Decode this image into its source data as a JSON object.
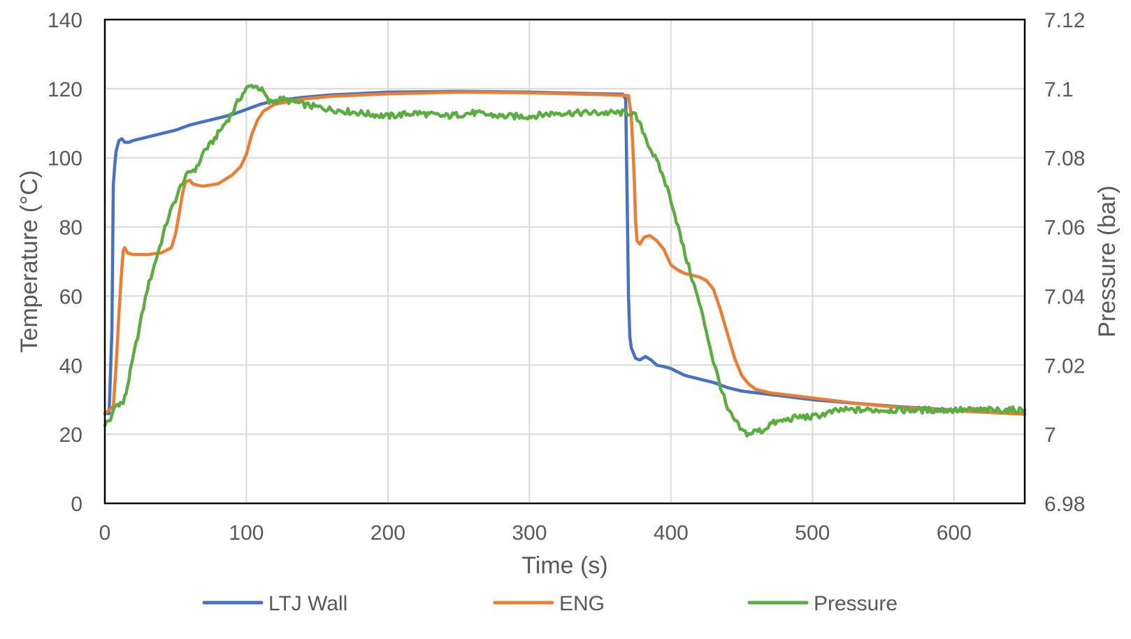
{
  "chart_data": {
    "type": "line",
    "title": "",
    "xlabel": "Time (s)",
    "ylabel": "Temperature (°C)",
    "y2label": "Pressure (bar)",
    "xlim": [
      0,
      650
    ],
    "ylim": [
      0,
      140
    ],
    "y2lim": [
      6.98,
      7.12
    ],
    "xticks": [
      0,
      100,
      200,
      300,
      400,
      500,
      600
    ],
    "yticks": [
      0,
      20,
      40,
      60,
      80,
      100,
      120,
      140
    ],
    "y2ticks": [
      "6.98",
      "7",
      "7.02",
      "7.04",
      "7.06",
      "7.08",
      "7.1",
      "7.12"
    ],
    "grid": true,
    "legend_position": "bottom",
    "colors": {
      "ltj_wall": "#4472C4",
      "eng": "#ED7D31",
      "pressure": "#5AAE3F"
    },
    "series": [
      {
        "name": "LTJ Wall",
        "axis": "left",
        "color": "#4472C4",
        "points": [
          [
            0,
            26
          ],
          [
            3,
            26
          ],
          [
            5,
            50
          ],
          [
            6,
            92
          ],
          [
            7,
            98
          ],
          [
            8,
            102
          ],
          [
            10,
            105
          ],
          [
            12,
            105.5
          ],
          [
            14,
            104.5
          ],
          [
            17,
            104.5
          ],
          [
            20,
            105
          ],
          [
            30,
            106
          ],
          [
            40,
            107
          ],
          [
            50,
            108
          ],
          [
            60,
            109.5
          ],
          [
            70,
            110.5
          ],
          [
            80,
            111.5
          ],
          [
            90,
            112.5
          ],
          [
            100,
            114
          ],
          [
            110,
            115.5
          ],
          [
            120,
            116.5
          ],
          [
            140,
            117.5
          ],
          [
            160,
            118.2
          ],
          [
            200,
            119
          ],
          [
            250,
            119.2
          ],
          [
            300,
            119
          ],
          [
            340,
            118.6
          ],
          [
            366,
            118.4
          ],
          [
            368,
            117
          ],
          [
            369,
            90
          ],
          [
            370,
            60
          ],
          [
            371,
            48
          ],
          [
            372,
            45
          ],
          [
            375,
            42
          ],
          [
            378,
            41.5
          ],
          [
            382,
            42.5
          ],
          [
            386,
            41.5
          ],
          [
            390,
            40
          ],
          [
            396,
            39.5
          ],
          [
            400,
            39
          ],
          [
            405,
            38
          ],
          [
            410,
            37
          ],
          [
            420,
            36
          ],
          [
            430,
            35
          ],
          [
            440,
            33.5
          ],
          [
            450,
            32.5
          ],
          [
            470,
            31.5
          ],
          [
            500,
            30
          ],
          [
            530,
            29
          ],
          [
            560,
            28
          ],
          [
            600,
            27
          ],
          [
            630,
            26.3
          ],
          [
            650,
            26
          ]
        ]
      },
      {
        "name": "ENG",
        "axis": "left",
        "color": "#ED7D31",
        "points": [
          [
            0,
            26
          ],
          [
            6,
            28
          ],
          [
            8,
            40
          ],
          [
            10,
            55
          ],
          [
            12,
            68
          ],
          [
            13,
            73
          ],
          [
            14,
            74
          ],
          [
            16,
            72.5
          ],
          [
            20,
            72
          ],
          [
            30,
            72
          ],
          [
            40,
            72.5
          ],
          [
            47,
            74
          ],
          [
            50,
            78
          ],
          [
            53,
            85
          ],
          [
            55,
            90
          ],
          [
            57,
            93
          ],
          [
            60,
            93.5
          ],
          [
            62,
            92.5
          ],
          [
            66,
            92
          ],
          [
            70,
            91.8
          ],
          [
            80,
            92.5
          ],
          [
            90,
            95
          ],
          [
            96,
            97.5
          ],
          [
            100,
            101
          ],
          [
            104,
            107
          ],
          [
            108,
            111
          ],
          [
            112,
            113.5
          ],
          [
            120,
            115.5
          ],
          [
            140,
            117
          ],
          [
            160,
            117.8
          ],
          [
            200,
            118.5
          ],
          [
            250,
            119
          ],
          [
            300,
            118.8
          ],
          [
            350,
            118.3
          ],
          [
            370,
            118
          ],
          [
            372,
            112
          ],
          [
            374,
            95
          ],
          [
            375,
            82
          ],
          [
            376,
            76
          ],
          [
            378,
            75
          ],
          [
            381,
            77
          ],
          [
            385,
            77.5
          ],
          [
            390,
            76
          ],
          [
            395,
            73.5
          ],
          [
            400,
            69
          ],
          [
            405,
            67.5
          ],
          [
            410,
            66.5
          ],
          [
            420,
            65.5
          ],
          [
            425,
            64.5
          ],
          [
            430,
            62
          ],
          [
            435,
            56
          ],
          [
            440,
            49
          ],
          [
            445,
            42
          ],
          [
            450,
            37
          ],
          [
            455,
            34.5
          ],
          [
            460,
            33
          ],
          [
            470,
            32
          ],
          [
            500,
            30.5
          ],
          [
            530,
            29
          ],
          [
            560,
            27.8
          ],
          [
            600,
            26.8
          ],
          [
            650,
            25.8
          ]
        ]
      },
      {
        "name": "Pressure",
        "axis": "right",
        "color": "#5AAE3F",
        "points": [
          [
            0,
            7.003
          ],
          [
            3,
            7.004
          ],
          [
            5,
            7.005
          ],
          [
            7,
            7.008
          ],
          [
            10,
            7.009
          ],
          [
            13,
            7.009
          ],
          [
            15,
            7.012
          ],
          [
            18,
            7.018
          ],
          [
            22,
            7.026
          ],
          [
            26,
            7.034
          ],
          [
            30,
            7.042
          ],
          [
            35,
            7.049
          ],
          [
            40,
            7.056
          ],
          [
            45,
            7.063
          ],
          [
            50,
            7.068
          ],
          [
            55,
            7.073
          ],
          [
            60,
            7.076
          ],
          [
            65,
            7.077
          ],
          [
            70,
            7.082
          ],
          [
            75,
            7.084
          ],
          [
            80,
            7.087
          ],
          [
            85,
            7.09
          ],
          [
            90,
            7.093
          ],
          [
            95,
            7.097
          ],
          [
            100,
            7.1
          ],
          [
            105,
            7.101
          ],
          [
            110,
            7.1
          ],
          [
            112,
            7.099
          ],
          [
            116,
            7.096
          ],
          [
            125,
            7.097
          ],
          [
            135,
            7.096
          ],
          [
            145,
            7.095
          ],
          [
            160,
            7.094
          ],
          [
            180,
            7.093
          ],
          [
            200,
            7.092
          ],
          [
            220,
            7.093
          ],
          [
            240,
            7.092
          ],
          [
            260,
            7.093
          ],
          [
            280,
            7.092
          ],
          [
            300,
            7.092
          ],
          [
            320,
            7.093
          ],
          [
            340,
            7.093
          ],
          [
            360,
            7.093
          ],
          [
            368,
            7.093
          ],
          [
            372,
            7.093
          ],
          [
            375,
            7.092
          ],
          [
            380,
            7.088
          ],
          [
            385,
            7.083
          ],
          [
            390,
            7.079
          ],
          [
            395,
            7.074
          ],
          [
            400,
            7.068
          ],
          [
            405,
            7.06
          ],
          [
            410,
            7.052
          ],
          [
            415,
            7.045
          ],
          [
            420,
            7.038
          ],
          [
            425,
            7.03
          ],
          [
            430,
            7.021
          ],
          [
            435,
            7.014
          ],
          [
            440,
            7.007
          ],
          [
            445,
            7.004
          ],
          [
            450,
            7.001
          ],
          [
            455,
            7.0
          ],
          [
            460,
            7.001
          ],
          [
            465,
            7.001
          ],
          [
            470,
            7.003
          ],
          [
            480,
            7.004
          ],
          [
            490,
            7.005
          ],
          [
            500,
            7.005
          ],
          [
            510,
            7.006
          ],
          [
            520,
            7.007
          ],
          [
            540,
            7.007
          ],
          [
            560,
            7.007
          ],
          [
            580,
            7.007
          ],
          [
            600,
            7.007
          ],
          [
            620,
            7.007
          ],
          [
            650,
            7.007
          ]
        ]
      }
    ]
  }
}
